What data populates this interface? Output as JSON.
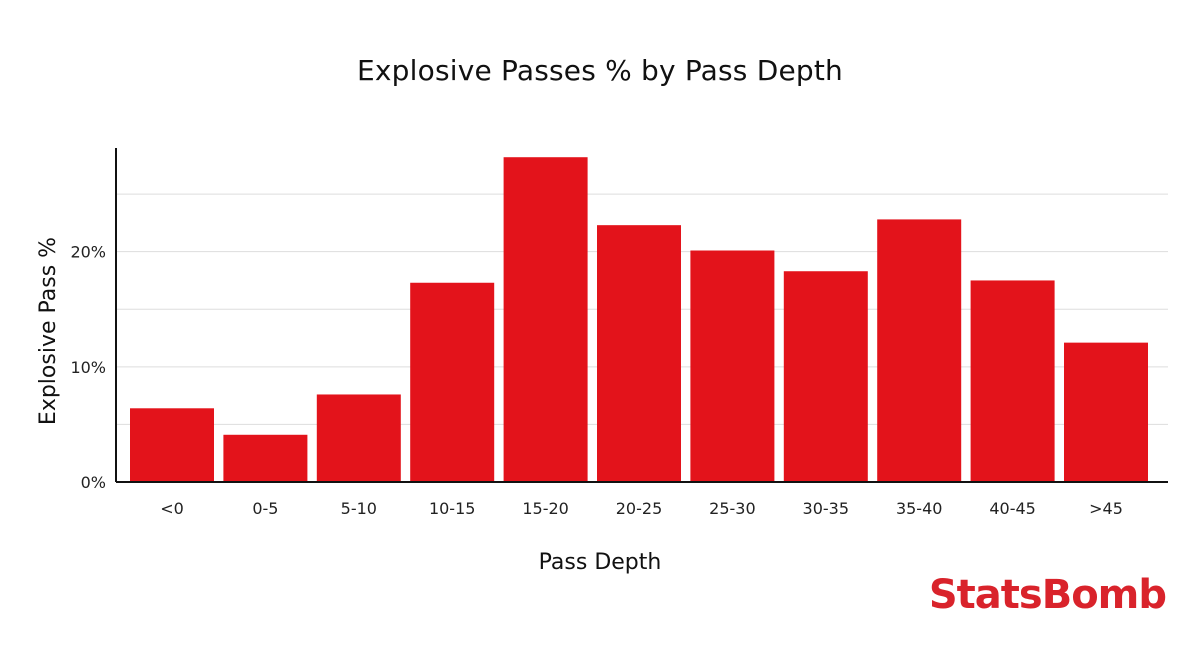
{
  "brand": {
    "name": "StatsBomb",
    "color": "#d9232b"
  },
  "chart_data": {
    "type": "bar",
    "title": "Explosive Passes % by Pass Depth",
    "xlabel": "Pass Depth",
    "ylabel": "Explosive Pass %",
    "categories": [
      "<0",
      "0-5",
      "5-10",
      "10-15",
      "15-20",
      "20-25",
      "25-30",
      "30-35",
      "35-40",
      "40-45",
      ">45"
    ],
    "values": [
      6.4,
      4.1,
      7.6,
      17.3,
      28.2,
      22.3,
      20.1,
      18.3,
      22.8,
      17.5,
      12.1
    ],
    "ylim": [
      0,
      29
    ],
    "yticks": [
      0,
      10,
      20
    ],
    "ytick_labels": [
      "0%",
      "10%",
      "20%"
    ],
    "gridlines": [
      5,
      10,
      15,
      20,
      25
    ],
    "grid": true,
    "bar_color": "#e3131b",
    "legend": false
  }
}
